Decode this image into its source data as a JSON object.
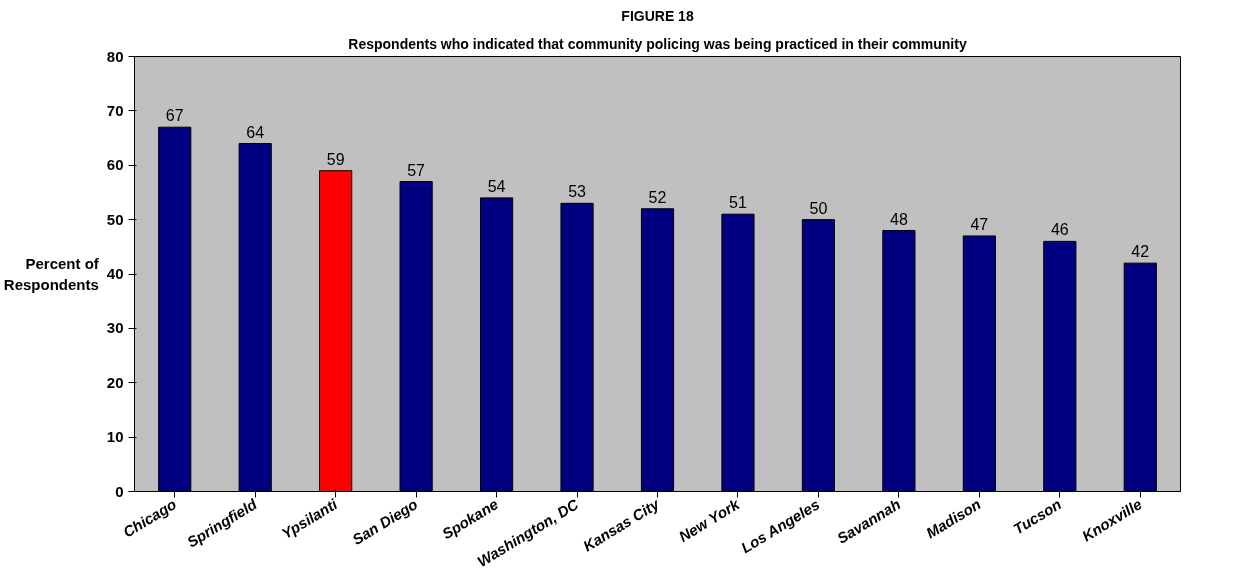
{
  "chart_data": {
    "type": "bar",
    "title": "FIGURE 18",
    "subtitle": "Respondents who indicated that community policing was being practiced in their community",
    "ylabel": "Percent of Respondents",
    "categories": [
      "Chicago",
      "Springfield",
      "Ypsilanti",
      "San Diego",
      "Spokane",
      "Washington, DC",
      "Kansas City",
      "New York",
      "Los Angeles",
      "Savannah",
      "Madison",
      "Tucson",
      "Knoxville"
    ],
    "values": [
      67,
      64,
      59,
      57,
      54,
      53,
      52,
      51,
      50,
      48,
      47,
      46,
      42
    ],
    "colors": [
      "#000080",
      "#000080",
      "#ff0000",
      "#000080",
      "#000080",
      "#000080",
      "#000080",
      "#000080",
      "#000080",
      "#000080",
      "#000080",
      "#000080",
      "#000080"
    ],
    "ylim": [
      0,
      80
    ],
    "yticks": [
      0,
      10,
      20,
      30,
      40,
      50,
      60,
      70,
      80
    ],
    "grid": false,
    "data_labels": true
  }
}
